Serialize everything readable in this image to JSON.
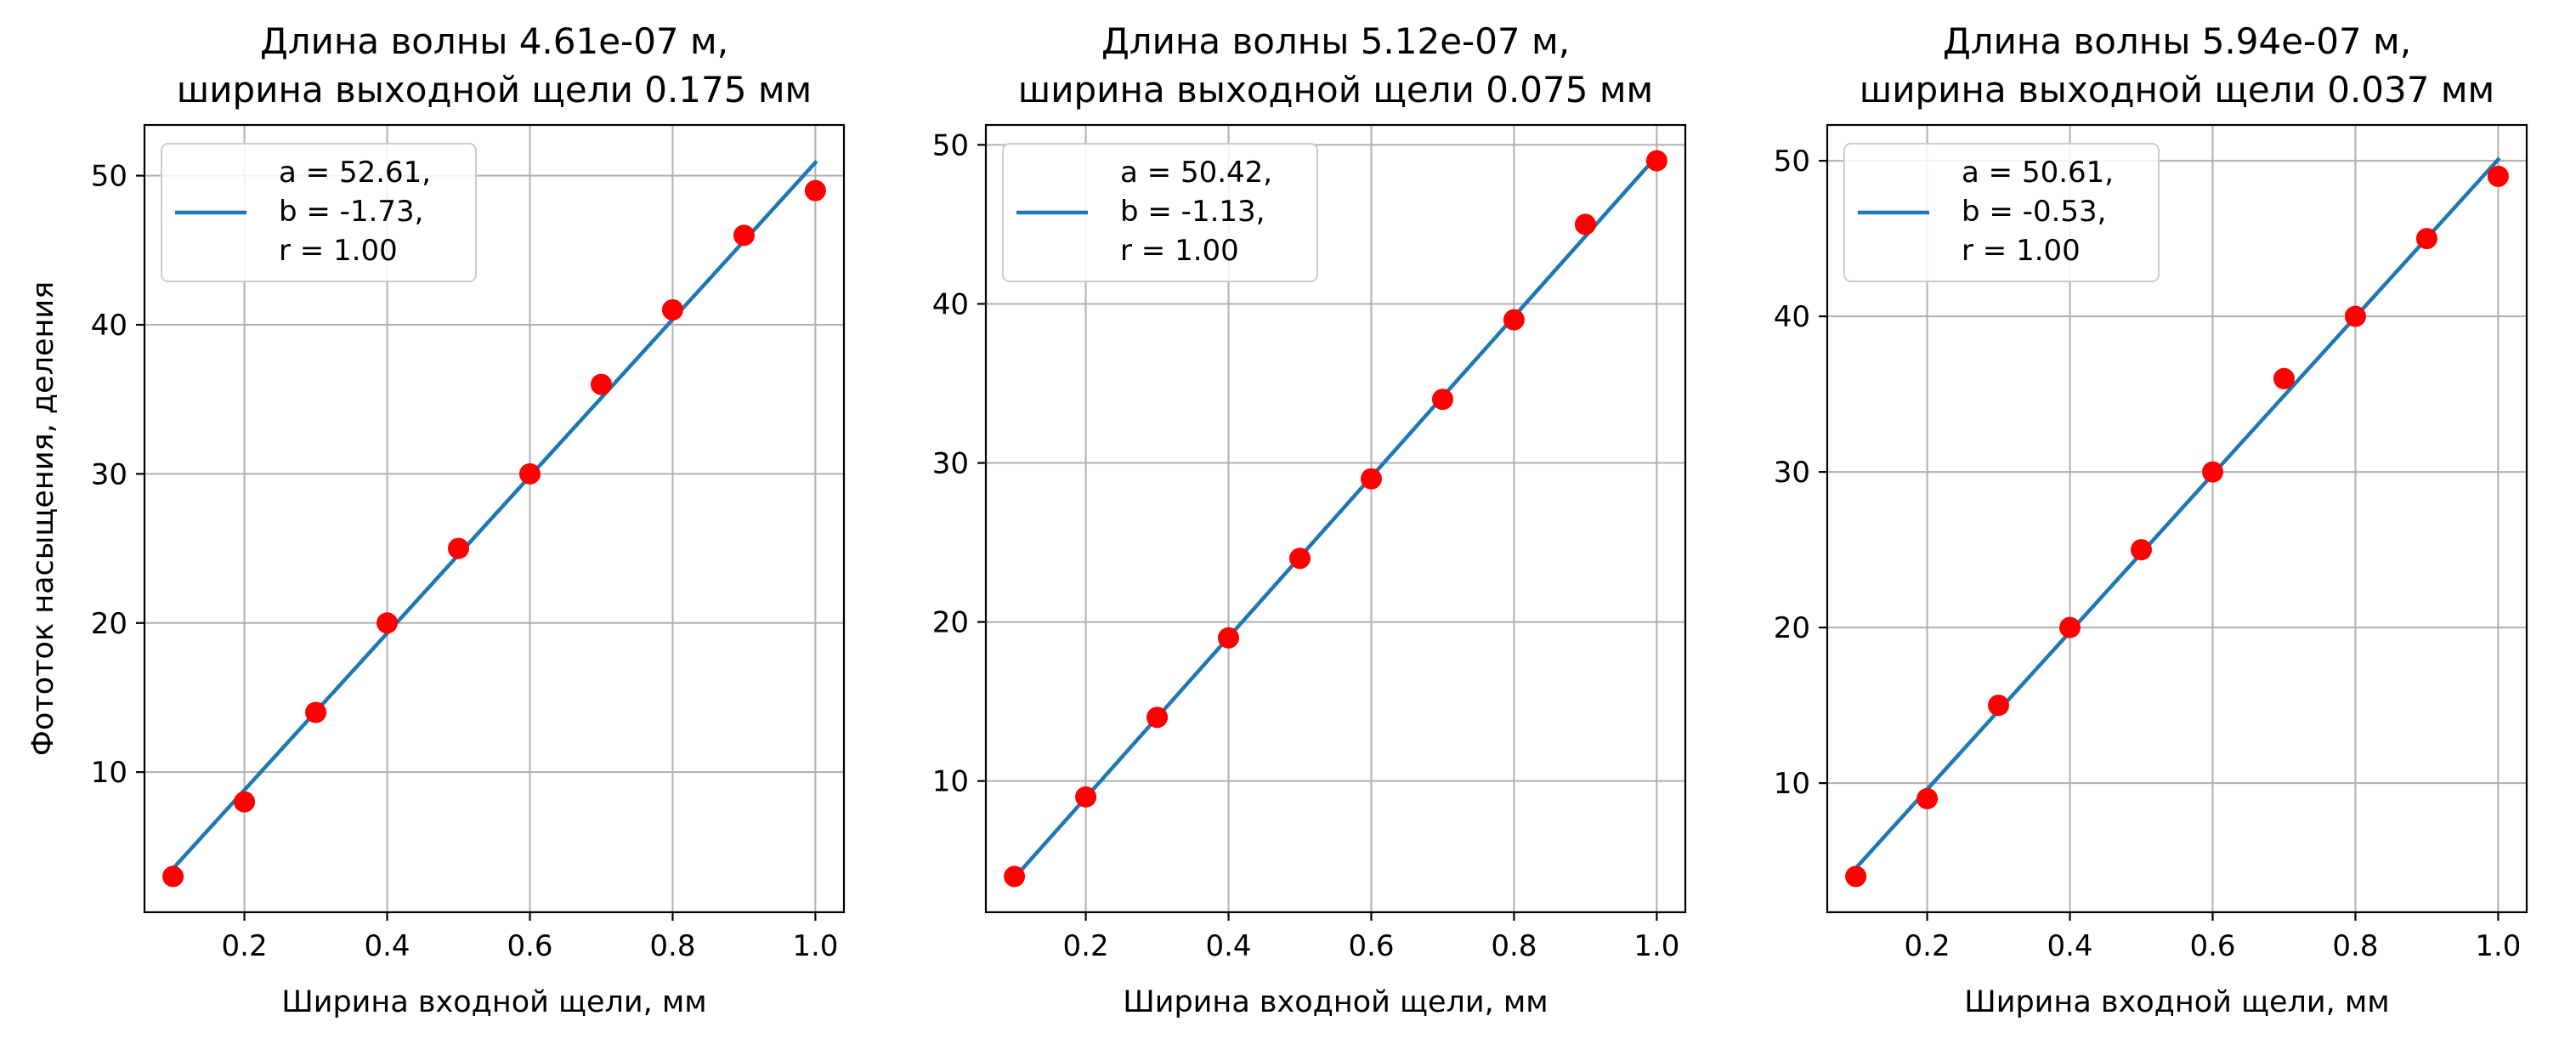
{
  "colors": {
    "line": "#1f77b4",
    "point": "#ff0000",
    "grid": "#b0b0b0"
  },
  "chart_data": [
    {
      "type": "scatter",
      "title": "Длина волны 4.61e-07 м,",
      "subtitle": "ширина выходной щели 0.175 мм",
      "xlabel": "Ширина входной щели, мм",
      "ylabel": "Фототок насыщения, деления",
      "xlim": [
        0.06,
        1.04
      ],
      "ylim": [
        0.6,
        53.4
      ],
      "xticks": [
        0.2,
        0.4,
        0.6,
        0.8,
        1.0
      ],
      "xtick_labels": [
        "0.2",
        "0.4",
        "0.6",
        "0.8",
        "1.0"
      ],
      "yticks": [
        10,
        20,
        30,
        40,
        50
      ],
      "ytick_labels": [
        "10",
        "20",
        "30",
        "40",
        "50"
      ],
      "grid": true,
      "legend_position": "top-left",
      "legend_lines": [
        "a = 52.61,",
        "b = -1.73,",
        "r = 1.00"
      ],
      "fit": {
        "name": "fit",
        "a": 52.61,
        "b": -1.73,
        "x": [
          0.1,
          1.0
        ]
      },
      "series": [
        {
          "name": "data",
          "x": [
            0.1,
            0.2,
            0.3,
            0.4,
            0.5,
            0.6,
            0.7,
            0.8,
            0.9,
            1.0
          ],
          "values": [
            3,
            8,
            14,
            20,
            25,
            30,
            36,
            41,
            46,
            49
          ]
        }
      ]
    },
    {
      "type": "scatter",
      "title": "Длина волны 5.12e-07 м,",
      "subtitle": "ширина выходной щели 0.075 мм",
      "xlabel": "Ширина входной щели, мм",
      "ylabel": "",
      "xlim": [
        0.06,
        1.04
      ],
      "ylim": [
        1.75,
        51.25
      ],
      "xticks": [
        0.2,
        0.4,
        0.6,
        0.8,
        1.0
      ],
      "xtick_labels": [
        "0.2",
        "0.4",
        "0.6",
        "0.8",
        "1.0"
      ],
      "yticks": [
        10,
        20,
        30,
        40,
        50
      ],
      "ytick_labels": [
        "10",
        "20",
        "30",
        "40",
        "50"
      ],
      "grid": true,
      "legend_position": "top-left",
      "legend_lines": [
        "a = 50.42,",
        "b = -1.13,",
        "r = 1.00"
      ],
      "fit": {
        "name": "fit",
        "a": 50.42,
        "b": -1.13,
        "x": [
          0.1,
          1.0
        ]
      },
      "series": [
        {
          "name": "data",
          "x": [
            0.1,
            0.2,
            0.3,
            0.4,
            0.5,
            0.6,
            0.7,
            0.8,
            0.9,
            1.0
          ],
          "values": [
            4,
            9,
            14,
            19,
            24,
            29,
            34,
            39,
            45,
            49
          ]
        }
      ]
    },
    {
      "type": "scatter",
      "title": "Длина волны 5.94e-07 м,",
      "subtitle": "ширина выходной щели 0.037 мм",
      "xlabel": "Ширина входной щели, мм",
      "ylabel": "",
      "xlim": [
        0.06,
        1.04
      ],
      "ylim": [
        1.7,
        52.3
      ],
      "xticks": [
        0.2,
        0.4,
        0.6,
        0.8,
        1.0
      ],
      "xtick_labels": [
        "0.2",
        "0.4",
        "0.6",
        "0.8",
        "1.0"
      ],
      "yticks": [
        10,
        20,
        30,
        40,
        50
      ],
      "ytick_labels": [
        "10",
        "20",
        "30",
        "40",
        "50"
      ],
      "grid": true,
      "legend_position": "top-left",
      "legend_lines": [
        "a = 50.61,",
        "b = -0.53,",
        "r = 1.00"
      ],
      "fit": {
        "name": "fit",
        "a": 50.61,
        "b": -0.53,
        "x": [
          0.1,
          1.0
        ]
      },
      "series": [
        {
          "name": "data",
          "x": [
            0.1,
            0.2,
            0.3,
            0.4,
            0.5,
            0.6,
            0.7,
            0.8,
            0.9,
            1.0
          ],
          "values": [
            4,
            9,
            15,
            20,
            25,
            30,
            36,
            40,
            45,
            49
          ]
        }
      ]
    }
  ]
}
